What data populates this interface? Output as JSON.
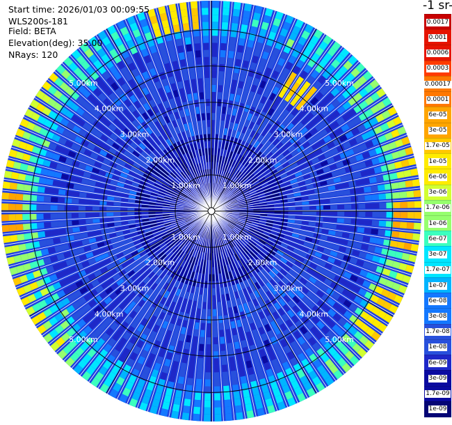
{
  "header": {
    "start_time": "Start time: 2026/01/03 00:09:55",
    "instrument": "WLS200s-181",
    "field": "Field: BETA",
    "elevation": "Elevation(deg): 35.00",
    "nrays": "NRays: 120"
  },
  "colorbar": {
    "title": "-1 sr-",
    "labels": [
      "0.0017",
      "0.001",
      "0.0006",
      "0.0003",
      "0.00017",
      "0.0001",
      "6e-05",
      "3e-05",
      "1.7e-05",
      "1e-05",
      "6e-06",
      "3e-06",
      "1.7e-06",
      "1e-06",
      "6e-07",
      "3e-07",
      "1.7e-07",
      "1e-07",
      "6e-08",
      "3e-08",
      "1.7e-08",
      "1e-08",
      "6e-09",
      "3e-09",
      "1.7e-09",
      "1e-09"
    ],
    "colors": [
      "#c80000",
      "#e61400",
      "#ff3c00",
      "#ff7800",
      "#ffa500",
      "#ffc800",
      "#ffeb00",
      "#d2ff32",
      "#96ff6e",
      "#3cffbe",
      "#00e6ff",
      "#00b4ff",
      "#1478ff",
      "#2850dc",
      "#1e28c8",
      "#0a0aa0",
      "#050575"
    ]
  },
  "chart_data": {
    "type": "heatmap",
    "subtype": "polar PPI scan",
    "variable": "BETA",
    "elevation_deg": 35.0,
    "nrays": 120,
    "range_rings_km": [
      1.0,
      2.0,
      3.0,
      4.0,
      5.0
    ],
    "ring_labels": [
      "1.00km",
      "2.00km",
      "3.00km",
      "4.00km",
      "5.00km"
    ],
    "max_range_km": 5.8,
    "color_scale": "log",
    "value_range": [
      1e-09,
      0.0017
    ],
    "field_description": {
      "background_level": 1e-08,
      "near_field_level": 3e-09,
      "outer_enhanced_level_east_west": 1e-05,
      "hot_spots": [
        {
          "azimuth_deg": 93,
          "range_km": 5.3,
          "value": 3e-05
        },
        {
          "azimuth_deg": 268,
          "range_km": 5.5,
          "value": 3e-05
        },
        {
          "azimuth_deg": 120,
          "range_km": 5.4,
          "value": 1e-05
        },
        {
          "azimuth_deg": 348,
          "range_km": 5.4,
          "value": 1e-05
        },
        {
          "azimuth_deg": 35,
          "range_km": 4.0,
          "value": 1e-05
        }
      ]
    }
  }
}
